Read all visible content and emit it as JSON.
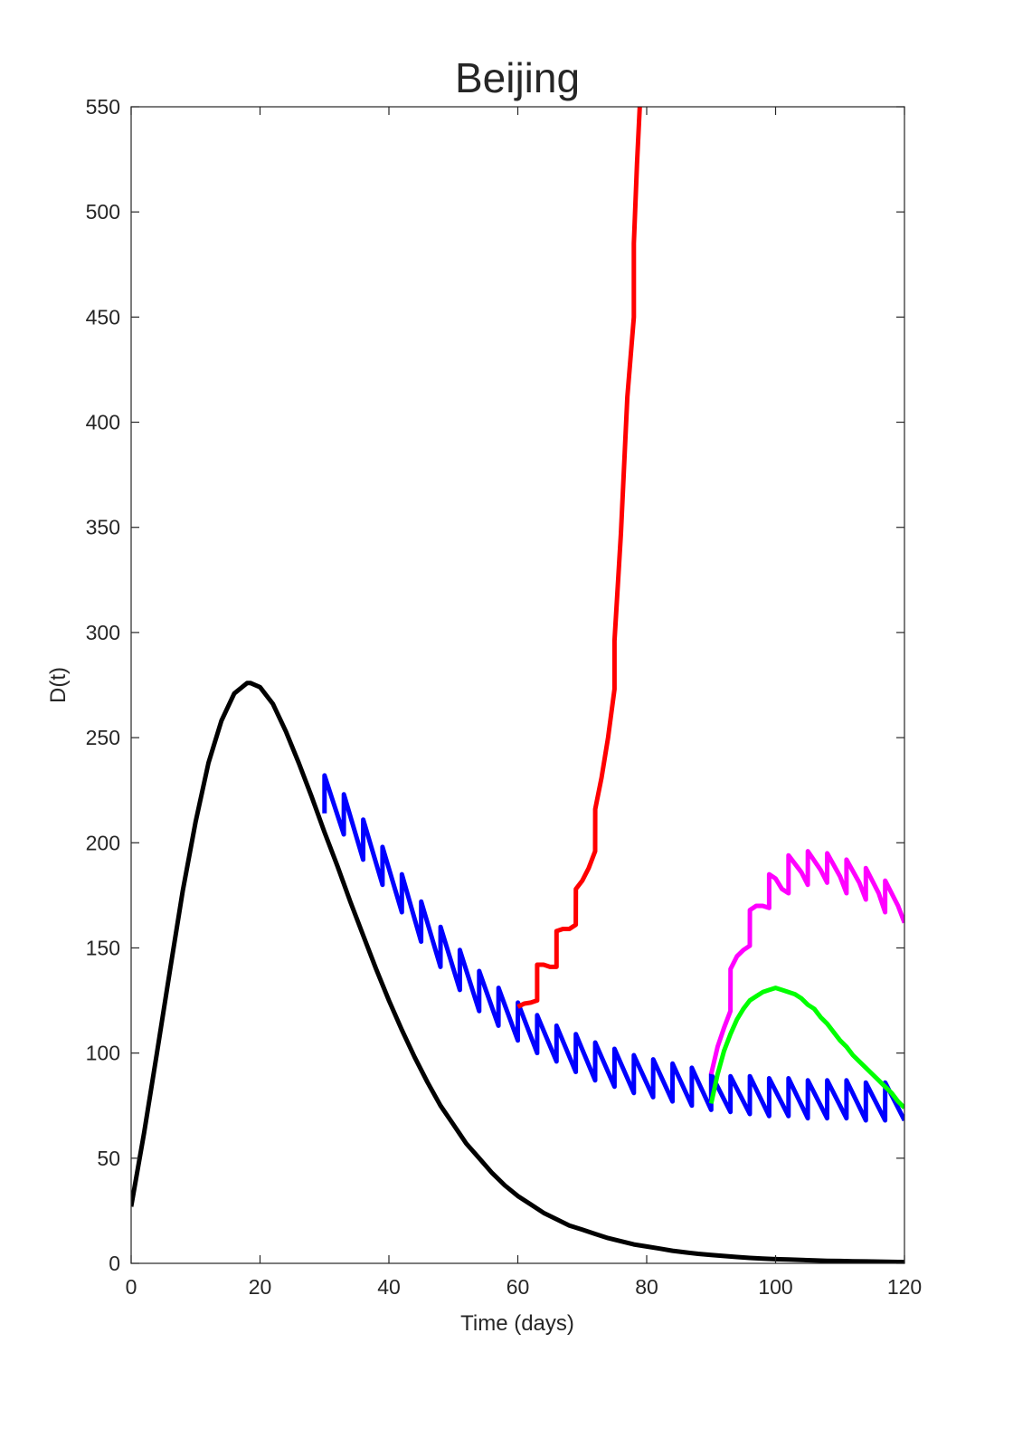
{
  "chart_data": {
    "type": "line",
    "title": "Beijing",
    "xlabel": "Time (days)",
    "ylabel": "D(t)",
    "xlim": [
      0,
      120
    ],
    "ylim": [
      0,
      550
    ],
    "xticks": [
      0,
      20,
      40,
      60,
      80,
      100,
      120
    ],
    "yticks": [
      0,
      50,
      100,
      150,
      200,
      250,
      300,
      350,
      400,
      450,
      500,
      550
    ],
    "grid": false,
    "legend": null,
    "series": [
      {
        "color": "#000000",
        "x": [
          0,
          2,
          4,
          6,
          8,
          10,
          12,
          14,
          16,
          18,
          18.5,
          20,
          22,
          24,
          26,
          28,
          30,
          32,
          34,
          36,
          38,
          40,
          42,
          44,
          46,
          48,
          50,
          52,
          54,
          56,
          58,
          60,
          62,
          64,
          66,
          68,
          70,
          72,
          74,
          76,
          78,
          80,
          82,
          84,
          86,
          88,
          90,
          92,
          94,
          96,
          98,
          100,
          102,
          104,
          106,
          108,
          110,
          112,
          114,
          116,
          118,
          120
        ],
        "y": [
          27,
          62,
          100,
          139,
          177,
          210,
          238,
          258,
          271,
          276,
          276,
          274,
          266,
          253,
          238,
          222,
          205,
          189,
          172,
          156,
          140,
          125,
          111,
          98,
          86,
          75,
          66,
          57,
          50,
          43,
          37,
          32,
          28,
          24,
          21,
          18,
          16,
          14,
          12,
          10.5,
          9,
          8,
          7,
          6,
          5.2,
          4.5,
          4,
          3.5,
          3,
          2.6,
          2.3,
          2,
          1.8,
          1.6,
          1.4,
          1.2,
          1.1,
          1,
          0.9,
          0.8,
          0.7,
          0.6
        ]
      },
      {
        "color": "#0000ff",
        "x": [
          30,
          30.01,
          33,
          33.01,
          36,
          36.01,
          39,
          39.01,
          42,
          42.01,
          45,
          45.01,
          48,
          48.01,
          51,
          51.01,
          54,
          54.01,
          57,
          57.01,
          60,
          60.01,
          63,
          63.01,
          66,
          66.01,
          69,
          69.01,
          72,
          72.01,
          75,
          75.01,
          78,
          78.01,
          81,
          81.01,
          84,
          84.01,
          87,
          87.01,
          90,
          90.01,
          93,
          93.01,
          96,
          96.01,
          99,
          99.01,
          102,
          102.01,
          105,
          105.01,
          108,
          108.01,
          111,
          111.01,
          114,
          114.01,
          117,
          117.01,
          120
        ],
        "y": [
          214,
          232,
          204,
          223,
          192,
          211,
          180,
          198,
          167,
          185,
          153,
          172,
          141,
          160,
          130,
          149,
          120,
          139,
          113,
          131,
          106,
          124,
          100,
          118,
          96,
          113,
          91,
          109,
          87,
          105,
          84,
          102,
          81,
          99,
          79,
          97,
          77,
          95,
          75,
          93,
          73,
          90,
          72,
          89,
          71,
          89,
          70,
          88,
          70,
          88,
          69,
          87,
          69,
          87,
          69,
          87,
          68,
          86,
          68,
          86,
          68
        ]
      },
      {
        "color": "#ff0000",
        "x": [
          60,
          61,
          62,
          63,
          63.01,
          64,
          65,
          66,
          66.01,
          67,
          68,
          69,
          69.01,
          70,
          71,
          72,
          72.01,
          73,
          74,
          75,
          75.01,
          76,
          77,
          78,
          78.01,
          78.5,
          79
        ],
        "y": [
          122,
          123.5,
          124,
          125,
          142,
          142,
          141,
          141,
          158,
          159,
          159,
          161,
          178,
          182,
          188,
          196,
          216,
          231,
          250,
          273,
          296,
          347,
          412,
          450,
          485,
          523,
          555
        ]
      },
      {
        "color": "#ff00ff",
        "x": [
          90,
          91,
          92,
          93,
          93.01,
          94,
          95,
          96,
          96.01,
          97,
          98,
          99,
          99.01,
          100,
          101,
          102,
          102.01,
          104,
          105,
          105.01,
          107,
          108,
          108.01,
          110,
          111,
          111.01,
          113,
          114,
          114.01,
          116,
          117,
          117.01,
          119,
          120
        ],
        "y": [
          90,
          103,
          112,
          120,
          140,
          146,
          149,
          151,
          168,
          170,
          170,
          169,
          185,
          183,
          178,
          176,
          194,
          186,
          180,
          196,
          187,
          181,
          195,
          184,
          176,
          192,
          181,
          173,
          188,
          176,
          167,
          182,
          170,
          162
        ]
      },
      {
        "color": "#00ff00",
        "x": [
          90,
          91,
          92,
          93,
          94,
          95,
          96,
          97,
          98,
          99,
          100,
          101,
          102,
          103,
          104,
          105,
          106,
          107,
          108,
          109,
          110,
          111,
          112,
          113,
          114,
          115,
          116,
          117,
          118,
          119,
          120
        ],
        "y": [
          76,
          90,
          101,
          109,
          116,
          121,
          125,
          127,
          129,
          130,
          131,
          130,
          129,
          128,
          126,
          123,
          121,
          117,
          114,
          110,
          106,
          103,
          99,
          96,
          93,
          90,
          87,
          84,
          81,
          77,
          74
        ]
      }
    ]
  }
}
